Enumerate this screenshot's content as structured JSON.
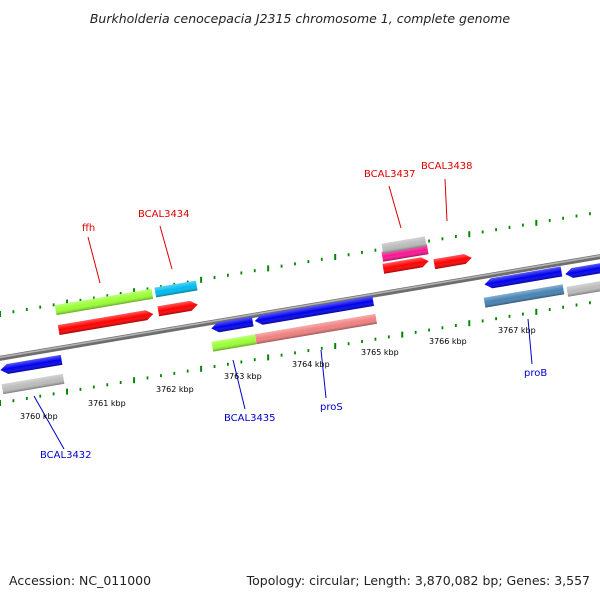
{
  "title": "Burkholderia cenocepacia J2315 chromosome 1, complete genome",
  "footer": {
    "accession": "Accession: NC_011000",
    "summary": "Topology: circular; Length: 3,870,082 bp; Genes: 3,557"
  },
  "scale_labels": [
    {
      "text": "3760 kbp"
    },
    {
      "text": "3761 kbp"
    },
    {
      "text": "3762 kbp"
    },
    {
      "text": "3763 kbp"
    },
    {
      "text": "3764 kbp"
    },
    {
      "text": "3765 kbp"
    },
    {
      "text": "3766 kbp"
    },
    {
      "text": "3767 kbp"
    }
  ],
  "gene_labels": [
    {
      "text": "ffh",
      "strand": "top",
      "color": "#dd0000"
    },
    {
      "text": "BCAL3434",
      "strand": "top",
      "color": "#dd0000"
    },
    {
      "text": "BCAL3437",
      "strand": "top",
      "color": "#dd0000"
    },
    {
      "text": "BCAL3438",
      "strand": "top",
      "color": "#dd0000"
    },
    {
      "text": "BCAL3432",
      "strand": "bottom",
      "color": "#0000cc"
    },
    {
      "text": "BCAL3435",
      "strand": "bottom",
      "color": "#0000cc"
    },
    {
      "text": "proS",
      "strand": "bottom",
      "color": "#0000cc"
    },
    {
      "text": "proB",
      "strand": "bottom",
      "color": "#0000cc"
    }
  ],
  "colors": {
    "forward_cds": "#ff0000",
    "reverse_cds": "#0000ee",
    "cog_green": "#99ff33",
    "cog_cyan": "#00bbee",
    "cog_magenta": "#ff1493",
    "cog_salmon": "#f08080",
    "cog_steel": "#4682b4",
    "cog_gray": "#bbbbbb",
    "backbone": "#808080",
    "ticks": "#008800"
  }
}
